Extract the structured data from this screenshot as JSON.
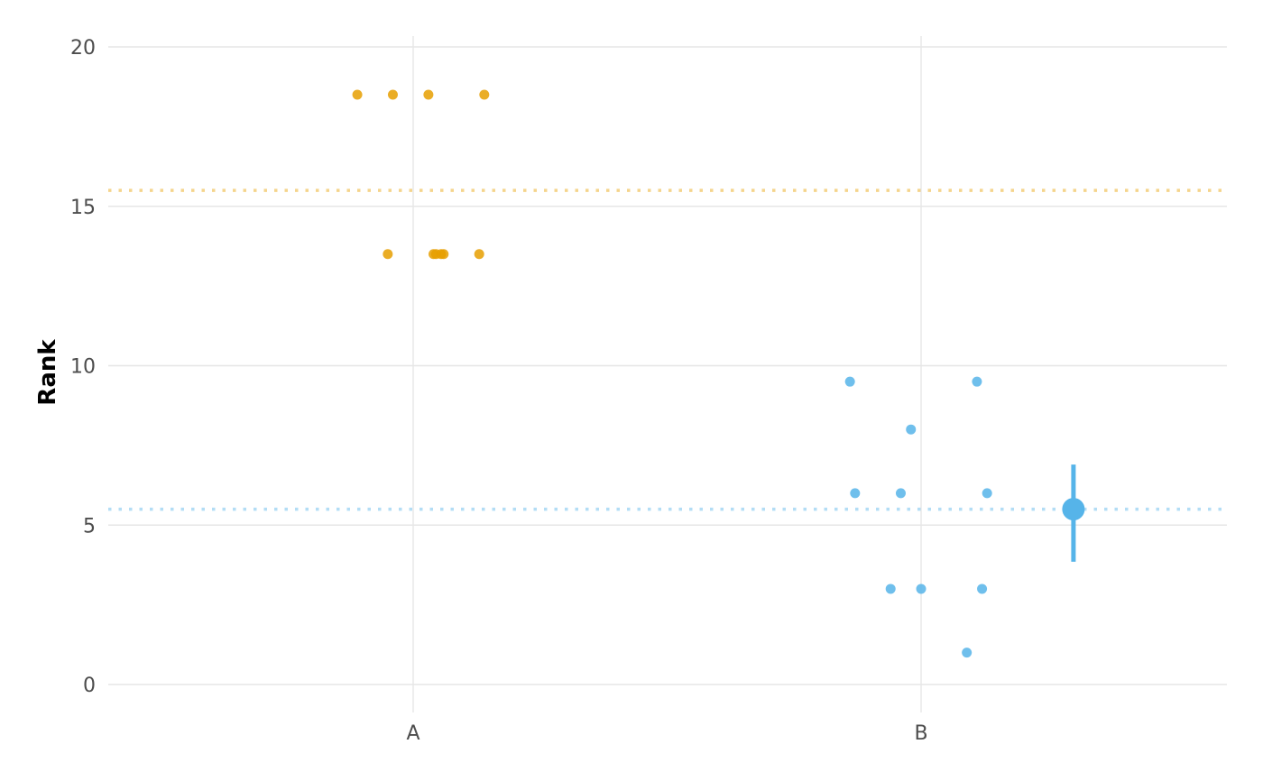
{
  "chart_data": {
    "type": "scatter",
    "title": "",
    "xlabel": "",
    "ylabel": "Rank",
    "categories": [
      "A",
      "B"
    ],
    "ylim": [
      -1.0,
      20.3
    ],
    "y_ticks": [
      0,
      5,
      10,
      15,
      20
    ],
    "grid": true,
    "legend": "none",
    "series": [
      {
        "group": "A",
        "color": "#E69F00",
        "points": [
          {
            "x": "A",
            "jitter": -0.11,
            "y": 18.5
          },
          {
            "x": "A",
            "jitter": -0.04,
            "y": 18.5
          },
          {
            "x": "A",
            "jitter": 0.03,
            "y": 18.5
          },
          {
            "x": "A",
            "jitter": 0.14,
            "y": 18.5
          },
          {
            "x": "A",
            "jitter": -0.05,
            "y": 13.5
          },
          {
            "x": "A",
            "jitter": 0.04,
            "y": 13.5
          },
          {
            "x": "A",
            "jitter": 0.045,
            "y": 13.5
          },
          {
            "x": "A",
            "jitter": 0.055,
            "y": 13.5
          },
          {
            "x": "A",
            "jitter": 0.06,
            "y": 13.5
          },
          {
            "x": "A",
            "jitter": 0.13,
            "y": 13.5
          }
        ],
        "mean": 15.5
      },
      {
        "group": "B",
        "color": "#56B4E9",
        "points": [
          {
            "x": "B",
            "jitter": -0.14,
            "y": 9.5
          },
          {
            "x": "B",
            "jitter": 0.11,
            "y": 9.5
          },
          {
            "x": "B",
            "jitter": -0.02,
            "y": 8
          },
          {
            "x": "B",
            "jitter": -0.13,
            "y": 6
          },
          {
            "x": "B",
            "jitter": -0.04,
            "y": 6
          },
          {
            "x": "B",
            "jitter": 0.13,
            "y": 6
          },
          {
            "x": "B",
            "jitter": -0.06,
            "y": 3
          },
          {
            "x": "B",
            "jitter": 0.0,
            "y": 3
          },
          {
            "x": "B",
            "jitter": 0.12,
            "y": 3
          },
          {
            "x": "B",
            "jitter": 0.09,
            "y": 1
          }
        ],
        "mean": 5.5,
        "summary": {
          "x_offset": 0.3,
          "y": 5.5,
          "low": 3.85,
          "high": 6.9
        }
      }
    ]
  }
}
